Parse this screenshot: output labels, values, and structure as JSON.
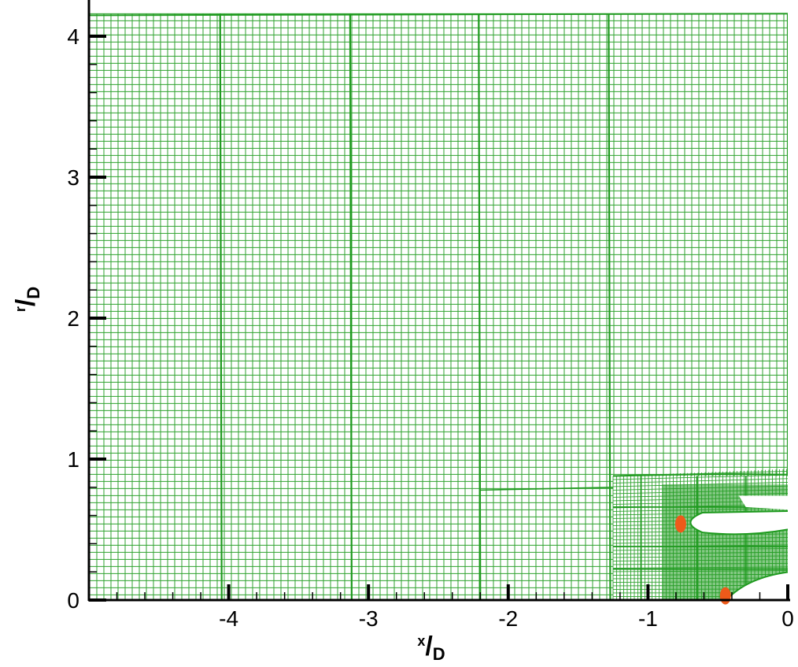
{
  "chart_data": {
    "type": "mesh",
    "xlim": [
      -5,
      0
    ],
    "ylim": [
      0,
      4.2
    ],
    "x_ticks": [
      -4,
      -3,
      -2,
      -1,
      0
    ],
    "x_tick_labels": [
      "-4",
      "-3",
      "-2",
      "-1",
      "0"
    ],
    "y_ticks": [
      0,
      1,
      2,
      3,
      4
    ],
    "y_tick_labels": [
      "0",
      "1",
      "2",
      "3",
      "4"
    ],
    "xlabel": {
      "num": "x",
      "den": "D"
    },
    "ylabel": {
      "num": "r",
      "den": "D"
    },
    "grid": false,
    "mesh": {
      "domain_top": 4.16,
      "block_boundaries_x": [
        -4.05,
        -3.12,
        -2.2,
        -1.27,
        0.0
      ],
      "fine_region": {
        "x": [
          -1.25,
          0.0
        ],
        "y": [
          0.0,
          0.88
        ]
      },
      "body_top_edge": {
        "x": [
          -0.8,
          0.0
        ],
        "y": [
          0.62,
          0.74
        ]
      },
      "body_slot": {
        "x_tip": -0.78,
        "y_lower": 0.48,
        "y_upper": 0.62
      },
      "wedge_lower": {
        "x_tip": -0.45,
        "y": 0.0
      },
      "highlight_points": [
        {
          "x": -0.8,
          "y": 0.54
        },
        {
          "x": -0.48,
          "y": 0.03
        }
      ]
    },
    "colors": {
      "mesh": "#2fa22f",
      "mesh_dense": "#1f9a1f",
      "highlight": "#ee5a1a",
      "axis": "#000000"
    }
  }
}
